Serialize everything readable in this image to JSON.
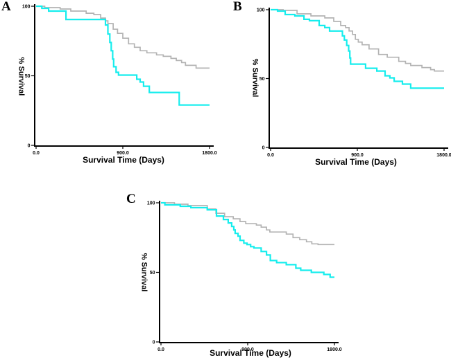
{
  "background": "#ffffff",
  "chart_data": [
    {
      "type": "line",
      "curve_style": "step",
      "title": "A",
      "xlabel": "Survival Time (Days)",
      "ylabel": "% Survival",
      "xlim": [
        0,
        1800
      ],
      "ylim": [
        0,
        100
      ],
      "grid": false,
      "legend": "none",
      "xticks": [
        {
          "v": 0,
          "label": "0.0"
        },
        {
          "v": 900,
          "label": "900.0"
        },
        {
          "v": 1800,
          "label": "1800.0"
        }
      ],
      "yticks": [
        {
          "v": 0,
          "label": "0"
        },
        {
          "v": 50,
          "label": "50"
        },
        {
          "v": 100,
          "label": "100"
        }
      ],
      "series": [
        {
          "name": "gray-curve",
          "color": "#b3b3b3",
          "points": [
            [
              0,
              100
            ],
            [
              90,
              99
            ],
            [
              250,
              98
            ],
            [
              360,
              96.5
            ],
            [
              520,
              95
            ],
            [
              600,
              94
            ],
            [
              670,
              91.5
            ],
            [
              720,
              89.5
            ],
            [
              745,
              87.5
            ],
            [
              800,
              83.5
            ],
            [
              845,
              80.5
            ],
            [
              900,
              77
            ],
            [
              960,
              73
            ],
            [
              1020,
              70.5
            ],
            [
              1080,
              68
            ],
            [
              1150,
              66.5
            ],
            [
              1250,
              65
            ],
            [
              1320,
              64
            ],
            [
              1400,
              62.5
            ],
            [
              1455,
              61
            ],
            [
              1510,
              59.5
            ],
            [
              1550,
              57.5
            ],
            [
              1660,
              55.5
            ],
            [
              1800,
              55.5
            ]
          ]
        },
        {
          "name": "cyan-curve",
          "color": "#16eded",
          "points": [
            [
              0,
              100
            ],
            [
              60,
              98.5
            ],
            [
              130,
              96.5
            ],
            [
              310,
              90.5
            ],
            [
              720,
              86.5
            ],
            [
              745,
              80
            ],
            [
              765,
              74
            ],
            [
              780,
              68
            ],
            [
              795,
              62
            ],
            [
              805,
              56.5
            ],
            [
              830,
              52.5
            ],
            [
              855,
              50.5
            ],
            [
              1045,
              47.5
            ],
            [
              1080,
              45.5
            ],
            [
              1115,
              42.5
            ],
            [
              1175,
              38
            ],
            [
              1485,
              29
            ],
            [
              1800,
              29
            ]
          ]
        }
      ]
    },
    {
      "type": "line",
      "curve_style": "step",
      "title": "B",
      "xlabel": "Survival Time (Days)",
      "ylabel": "% Survival",
      "xlim": [
        0,
        1800
      ],
      "ylim": [
        0,
        100
      ],
      "grid": false,
      "legend": "none",
      "xticks": [
        {
          "v": 0,
          "label": "0.0"
        },
        {
          "v": 900,
          "label": "900.0"
        },
        {
          "v": 1800,
          "label": "1800.0"
        }
      ],
      "yticks": [
        {
          "v": 0,
          "label": "0"
        },
        {
          "v": 50,
          "label": "50"
        },
        {
          "v": 100,
          "label": "100"
        }
      ],
      "series": [
        {
          "name": "gray-curve",
          "color": "#b3b3b3",
          "points": [
            [
              0,
              100
            ],
            [
              130,
              99.5
            ],
            [
              274,
              97
            ],
            [
              418,
              95.5
            ],
            [
              562,
              94
            ],
            [
              655,
              91.5
            ],
            [
              727,
              88.5
            ],
            [
              778,
              87
            ],
            [
              814,
              84.5
            ],
            [
              850,
              82
            ],
            [
              880,
              78.5
            ],
            [
              910,
              76.5
            ],
            [
              950,
              74.5
            ],
            [
              1022,
              71.5
            ],
            [
              1120,
              67.5
            ],
            [
              1210,
              65.5
            ],
            [
              1330,
              62.5
            ],
            [
              1400,
              61
            ],
            [
              1454,
              59.5
            ],
            [
              1570,
              58
            ],
            [
              1660,
              56.5
            ],
            [
              1700,
              55.5
            ],
            [
              1800,
              55.5
            ]
          ]
        },
        {
          "name": "cyan-curve",
          "color": "#16eded",
          "points": [
            [
              0,
              100
            ],
            [
              72,
              99
            ],
            [
              151,
              96.5
            ],
            [
              252,
              95.5
            ],
            [
              346,
              93
            ],
            [
              403,
              92
            ],
            [
              504,
              88.5
            ],
            [
              562,
              87
            ],
            [
              612,
              84.5
            ],
            [
              745,
              81
            ],
            [
              765,
              78
            ],
            [
              790,
              74
            ],
            [
              810,
              70
            ],
            [
              822,
              65
            ],
            [
              830,
              60.5
            ],
            [
              986,
              57.5
            ],
            [
              1102,
              55.5
            ],
            [
              1188,
              52
            ],
            [
              1238,
              50.5
            ],
            [
              1282,
              48
            ],
            [
              1368,
              46
            ],
            [
              1454,
              43
            ],
            [
              1800,
              43
            ]
          ]
        }
      ]
    },
    {
      "type": "line",
      "curve_style": "step",
      "title": "C",
      "xlabel": "Survival Time (Days)",
      "ylabel": "% Survival",
      "xlim": [
        0,
        1800
      ],
      "ylim": [
        0,
        100
      ],
      "grid": false,
      "legend": "none",
      "xticks": [
        {
          "v": 0,
          "label": "0.0"
        },
        {
          "v": 900,
          "label": "900.0"
        },
        {
          "v": 1800,
          "label": "1800.0"
        }
      ],
      "yticks": [
        {
          "v": 0,
          "label": "0"
        },
        {
          "v": 50,
          "label": "50"
        },
        {
          "v": 100,
          "label": "100"
        }
      ],
      "series": [
        {
          "name": "gray-curve",
          "color": "#b3b3b3",
          "points": [
            [
              0,
              100
            ],
            [
              140,
              99
            ],
            [
              280,
              98
            ],
            [
              480,
              95.5
            ],
            [
              570,
              92.5
            ],
            [
              660,
              90
            ],
            [
              750,
              88.5
            ],
            [
              820,
              86.5
            ],
            [
              880,
              85
            ],
            [
              990,
              84
            ],
            [
              1040,
              82.5
            ],
            [
              1095,
              80.5
            ],
            [
              1130,
              79
            ],
            [
              1300,
              77.5
            ],
            [
              1370,
              75
            ],
            [
              1440,
              73.5
            ],
            [
              1510,
              72
            ],
            [
              1565,
              70.5
            ],
            [
              1630,
              70
            ],
            [
              1800,
              70
            ]
          ]
        },
        {
          "name": "cyan-curve",
          "color": "#16eded",
          "points": [
            [
              0,
              100
            ],
            [
              40,
              98.5
            ],
            [
              200,
              97.5
            ],
            [
              310,
              96.5
            ],
            [
              480,
              95
            ],
            [
              576,
              90.5
            ],
            [
              648,
              88
            ],
            [
              698,
              85.5
            ],
            [
              734,
              83
            ],
            [
              756,
              80.5
            ],
            [
              770,
              78
            ],
            [
              800,
              76
            ],
            [
              821,
              73
            ],
            [
              860,
              71
            ],
            [
              893,
              70
            ],
            [
              930,
              68.5
            ],
            [
              965,
              67.5
            ],
            [
              1040,
              65
            ],
            [
              1095,
              62.5
            ],
            [
              1135,
              58.5
            ],
            [
              1200,
              57
            ],
            [
              1300,
              55.5
            ],
            [
              1400,
              53
            ],
            [
              1450,
              51.5
            ],
            [
              1560,
              50
            ],
            [
              1690,
              48.5
            ],
            [
              1755,
              46.5
            ],
            [
              1800,
              46.5
            ]
          ]
        }
      ]
    }
  ]
}
